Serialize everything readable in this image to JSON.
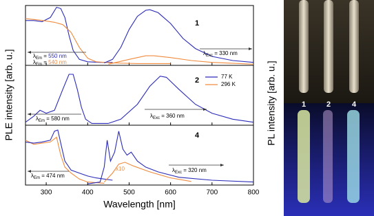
{
  "figure": {
    "ylabel": "PLE intensity [arb. u.]",
    "y2label": "PL intensity [arb. u.]"
  },
  "photo": {
    "labels": [
      "1",
      "2",
      "4"
    ]
  },
  "chart_data": [
    {
      "type": "line",
      "xlim": [
        250,
        800
      ],
      "ylim": [
        0,
        1
      ],
      "xticks": [
        300,
        400,
        500,
        600,
        700,
        800
      ],
      "annotations": [
        {
          "parts": [
            {
              "text": "1",
              "bold": true
            }
          ]
        },
        {
          "parts": [
            {
              "text": "λ"
            },
            {
              "text": "Em",
              "sub": true
            },
            {
              "text": " = "
            },
            {
              "text": "550 nm",
              "color": "#2a2ab8"
            }
          ]
        },
        {
          "parts": [
            {
              "text": "λ"
            },
            {
              "text": "Em",
              "sub": true
            },
            {
              "text": " = "
            },
            {
              "text": "540 nm",
              "color": "#f08a3c"
            }
          ]
        },
        {
          "parts": [
            {
              "text": "λ"
            },
            {
              "text": "Exc",
              "sub": true
            },
            {
              "text": " = 330 nm"
            }
          ]
        }
      ],
      "series": [
        {
          "color": "#2a2ab8",
          "x": [
            250,
            270,
            290,
            310,
            325,
            335,
            345,
            355,
            365,
            380,
            400,
            430,
            460
          ],
          "values": [
            0.75,
            0.75,
            0.73,
            0.8,
            0.97,
            0.95,
            0.8,
            0.5,
            0.25,
            0.1,
            0.06,
            0.05,
            0.05
          ]
        },
        {
          "color": "#f08a3c",
          "x": [
            250,
            280,
            300,
            320,
            340,
            360,
            380,
            400,
            420,
            460,
            520,
            600
          ],
          "values": [
            0.78,
            0.76,
            0.74,
            0.72,
            0.68,
            0.55,
            0.3,
            0.12,
            0.06,
            0.04,
            0.03,
            0.03
          ]
        },
        {
          "color": "#2a2ab8",
          "x": [
            440,
            460,
            480,
            500,
            520,
            540,
            550,
            570,
            600,
            630,
            660,
            700,
            750,
            800
          ],
          "values": [
            0.04,
            0.1,
            0.3,
            0.6,
            0.82,
            0.92,
            0.93,
            0.88,
            0.7,
            0.45,
            0.28,
            0.15,
            0.08,
            0.05
          ]
        },
        {
          "color": "#f08a3c",
          "x": [
            450,
            500,
            540,
            560,
            600,
            650,
            700,
            800
          ],
          "values": [
            0.02,
            0.1,
            0.16,
            0.16,
            0.13,
            0.08,
            0.05,
            0.02
          ]
        }
      ]
    },
    {
      "type": "line",
      "xlim": [
        250,
        800
      ],
      "ylim": [
        0,
        1
      ],
      "xticks": [
        300,
        400,
        500,
        600,
        700,
        800
      ],
      "legend": [
        {
          "name": "77 K",
          "color": "#2a2ab8"
        },
        {
          "name": "296 K",
          "color": "#f08a3c"
        }
      ],
      "annotations": [
        {
          "parts": [
            {
              "text": "2",
              "bold": true
            }
          ]
        },
        {
          "parts": [
            {
              "text": "λ"
            },
            {
              "text": "Em",
              "sub": true
            },
            {
              "text": " = 580 nm"
            }
          ]
        },
        {
          "parts": [
            {
              "text": "λ"
            },
            {
              "text": "Exc",
              "sub": true
            },
            {
              "text": " = 360 nm"
            }
          ]
        }
      ],
      "series": [
        {
          "color": "#2a2ab8",
          "x": [
            250,
            270,
            285,
            300,
            320,
            340,
            355,
            365,
            375,
            385,
            395,
            410,
            450
          ],
          "values": [
            0.05,
            0.15,
            0.25,
            0.2,
            0.25,
            0.6,
            0.85,
            0.85,
            0.6,
            0.3,
            0.1,
            0.03,
            0.03
          ]
        },
        {
          "color": "#2a2ab8",
          "x": [
            450,
            480,
            520,
            550,
            575,
            590,
            620,
            660,
            700,
            750,
            800
          ],
          "values": [
            0.03,
            0.1,
            0.35,
            0.65,
            0.82,
            0.8,
            0.6,
            0.35,
            0.2,
            0.1,
            0.05
          ]
        }
      ]
    },
    {
      "type": "line",
      "xlim": [
        250,
        800
      ],
      "ylim": [
        0,
        1
      ],
      "xticks": [
        300,
        400,
        500,
        600,
        700,
        800
      ],
      "xlabel": "Wavelength [nm]",
      "annotations": [
        {
          "parts": [
            {
              "text": "4",
              "bold": true
            }
          ]
        },
        {
          "parts": [
            {
              "text": "λ"
            },
            {
              "text": "Em",
              "sub": true
            },
            {
              "text": " = 474 nm"
            }
          ]
        },
        {
          "parts": [
            {
              "text": "λ"
            },
            {
              "text": "Exc",
              "sub": true
            },
            {
              "text": " = 320 nm"
            }
          ]
        },
        {
          "parts": [
            {
              "text": "x10",
              "color": "#f08a3c"
            }
          ]
        }
      ],
      "series": [
        {
          "color": "#f08a3c",
          "x": [
            250,
            270,
            290,
            310,
            325,
            335,
            345,
            360,
            380,
            400,
            440
          ],
          "values": [
            0.75,
            0.68,
            0.7,
            0.72,
            0.8,
            0.5,
            0.3,
            0.2,
            0.1,
            0.05,
            0.03
          ]
        },
        {
          "color": "#2a2ab8",
          "x": [
            250,
            270,
            290,
            310,
            320,
            328,
            335,
            345,
            360,
            380,
            400,
            420,
            440,
            460
          ],
          "values": [
            0.72,
            0.7,
            0.72,
            0.75,
            0.9,
            0.92,
            0.7,
            0.4,
            0.25,
            0.2,
            0.15,
            0.12,
            0.1,
            0.08
          ]
        },
        {
          "color": "#f08a3c",
          "x": [
            440,
            460,
            475,
            490,
            510,
            550,
            600,
            650
          ],
          "values": [
            0.05,
            0.2,
            0.35,
            0.38,
            0.32,
            0.22,
            0.12,
            0.06
          ]
        },
        {
          "color": "#2a2ab8",
          "x": [
            400,
            430,
            440,
            447,
            455,
            465,
            475,
            485,
            495,
            505,
            520,
            540,
            570,
            620,
            700,
            800
          ],
          "values": [
            0.02,
            0.05,
            0.3,
            0.75,
            0.4,
            0.55,
            0.9,
            0.6,
            0.5,
            0.55,
            0.4,
            0.3,
            0.22,
            0.13,
            0.08,
            0.05
          ]
        }
      ]
    }
  ]
}
